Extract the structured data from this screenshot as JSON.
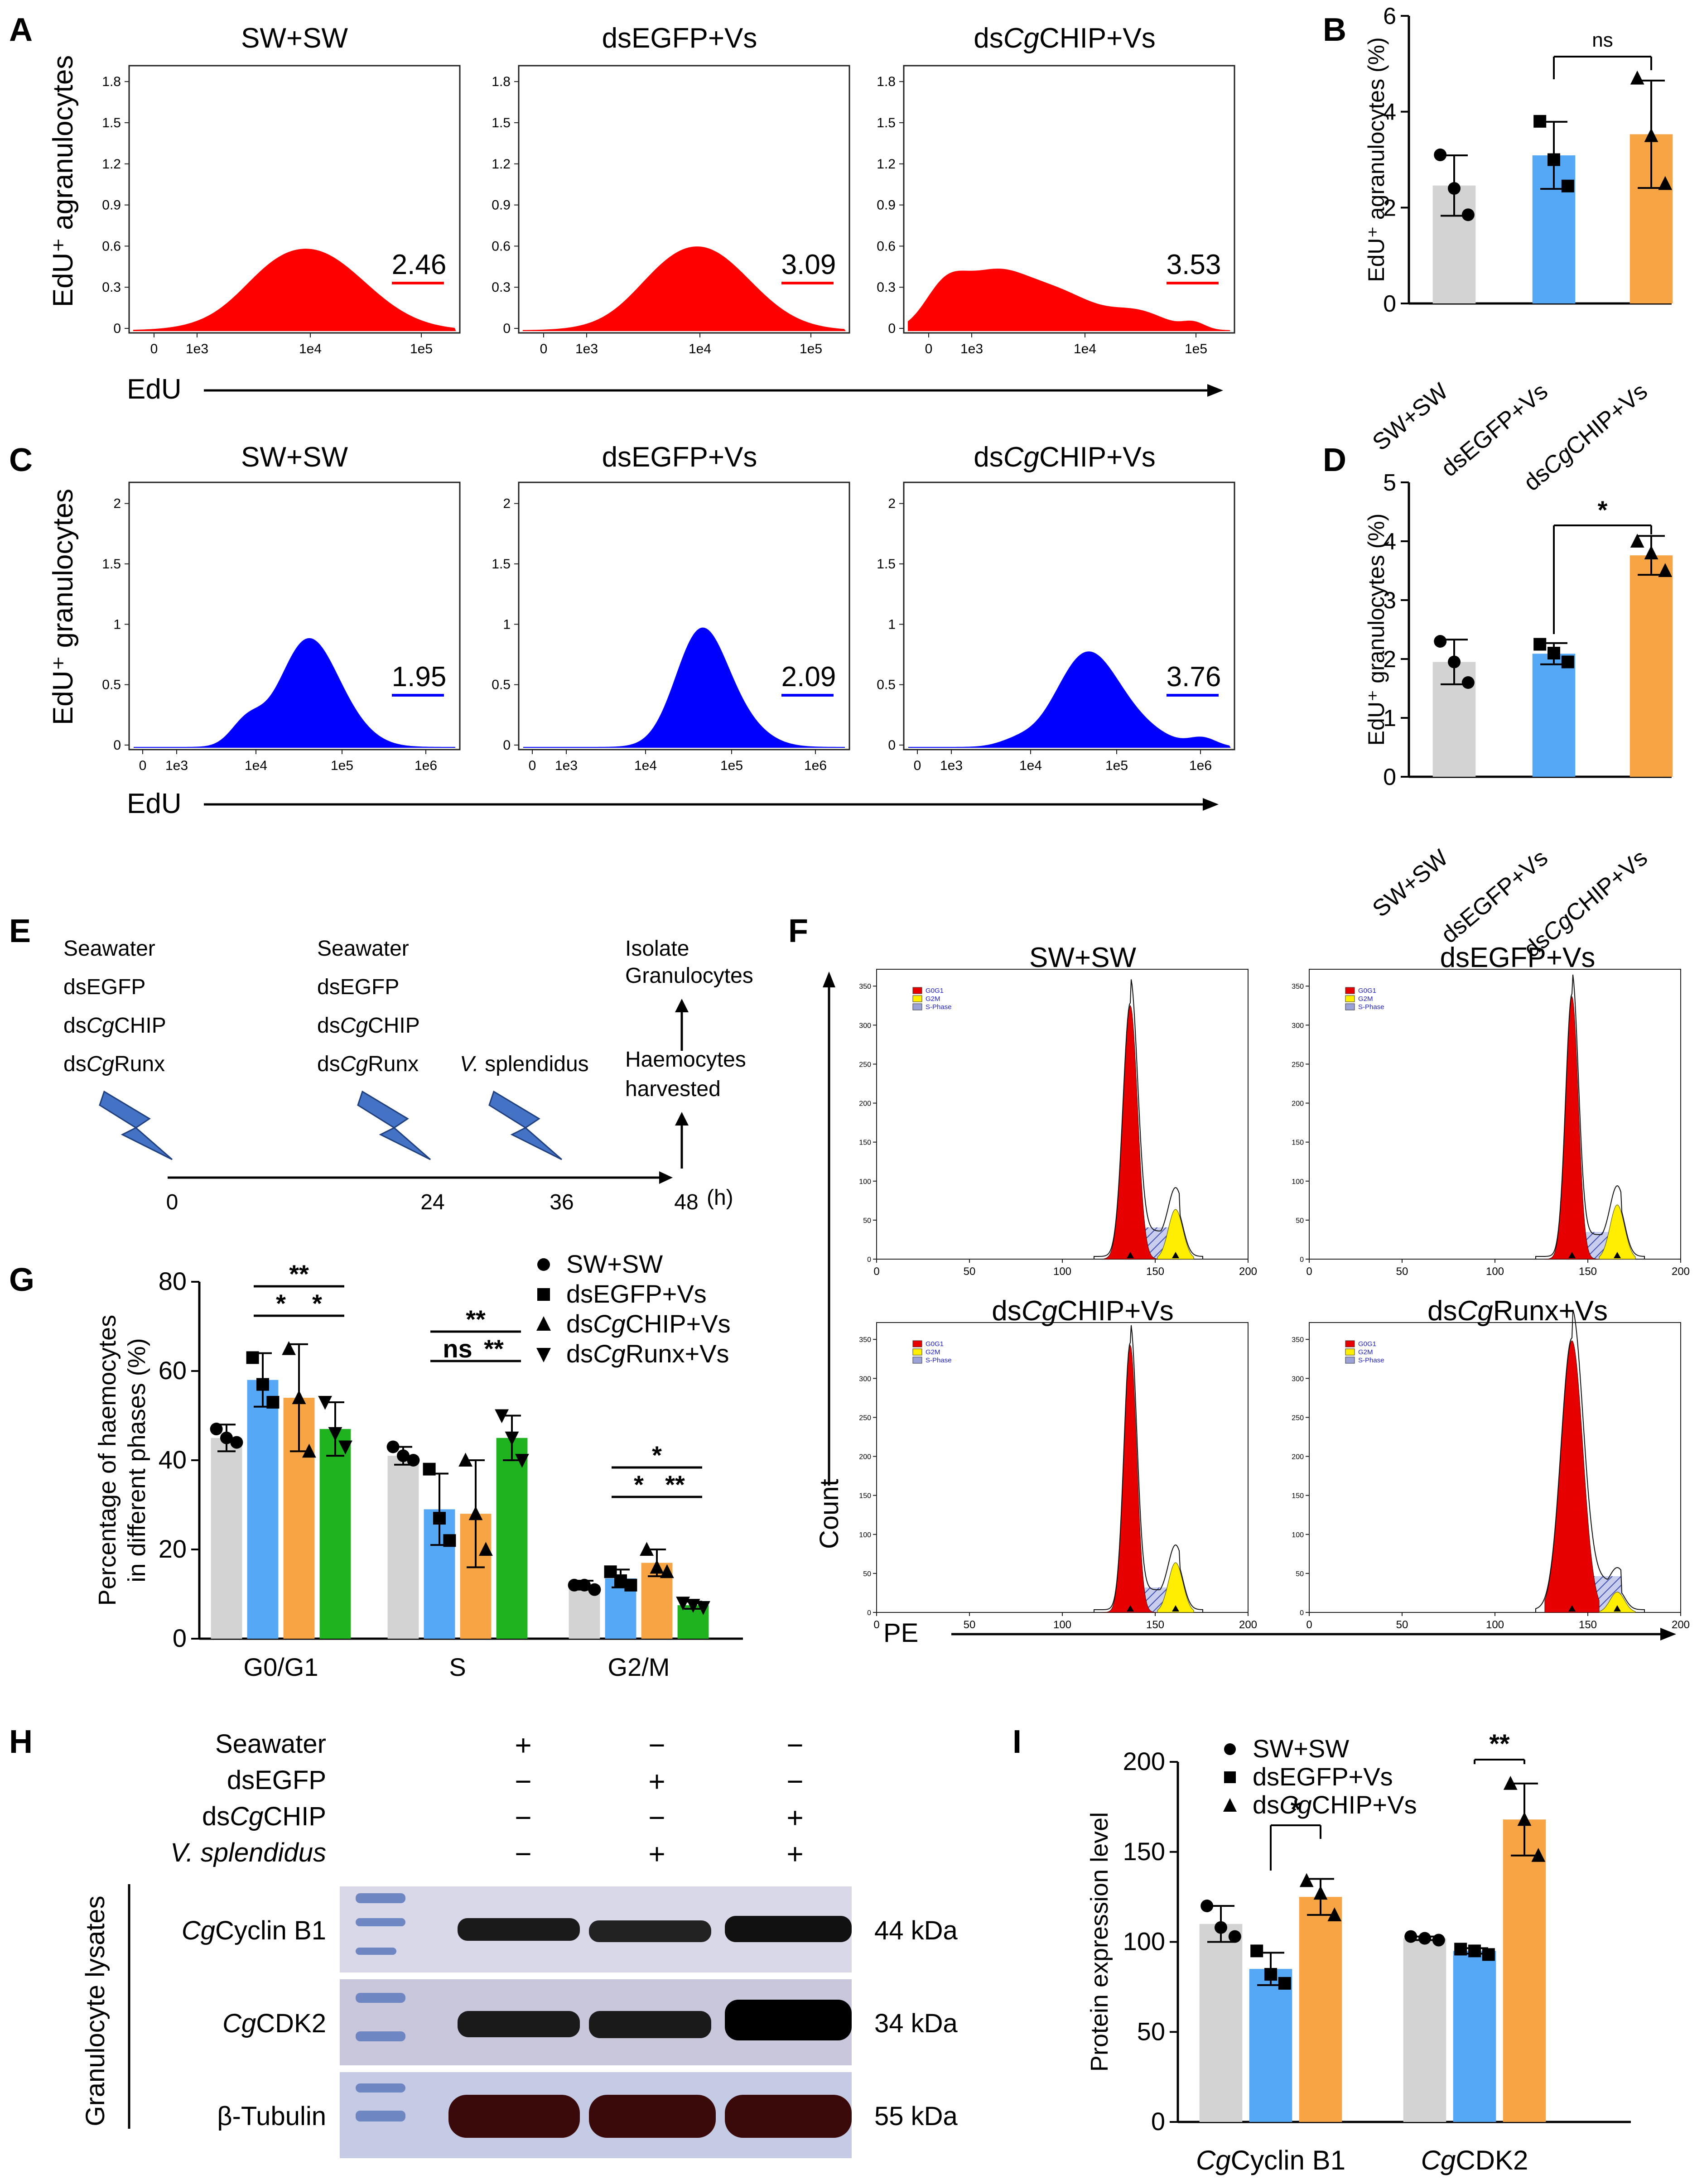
{
  "colors": {
    "sw": "#d3d3d3",
    "egfp": "#55a8f6",
    "chip": "#f7a445",
    "runx": "#1fb31f",
    "edu_agran": "#ff0000",
    "edu_gran": "#0000ff",
    "g0g1": "#e60000",
    "g2m": "#ffee00",
    "sphase": "#9aa2d8"
  },
  "panel_letters": {
    "a": "A",
    "b": "B",
    "c": "C",
    "d": "D",
    "e": "E",
    "f": "F",
    "g": "G",
    "h": "H",
    "i": "I"
  },
  "groups": {
    "sw": "SW+SW",
    "egfp": "dsEGFP+Vs",
    "chip_pre": "ds",
    "chip_it": "Cg",
    "chip_post": "CHIP+Vs",
    "runx_pre": "ds",
    "runx_it": "Cg",
    "runx_post": "Runx+Vs"
  },
  "panel_a": {
    "ylabel": "EdU⁺ agranulocytes",
    "xlabel": "EdU",
    "y_ticks": [
      "0",
      "0.3",
      "0.6",
      "0.9",
      "1.2",
      "1.5",
      "1.8"
    ],
    "x_ticks": [
      "0",
      "1e3",
      "1e4",
      "1e5"
    ],
    "values": [
      "2.46",
      "3.09",
      "3.53"
    ]
  },
  "panel_c": {
    "ylabel": "EdU⁺ granulocytes",
    "xlabel": "EdU",
    "y_ticks": [
      "0",
      "0.5",
      "1",
      "1.5",
      "2"
    ],
    "x_ticks": [
      "0",
      "1e3",
      "1e4",
      "1e5",
      "1e6"
    ],
    "values": [
      "1.95",
      "2.09",
      "3.76"
    ]
  },
  "panel_e": {
    "col1": [
      "Seawater",
      "dsEGFP",
      "dsCgCHIP",
      "dsCgRunx"
    ],
    "col2": [
      "Seawater",
      "dsEGFP",
      "dsCgCHIP",
      "dsCgRunx"
    ],
    "vs": "V. splendidus",
    "isolate": [
      "Isolate",
      "Granulocytes"
    ],
    "harvest": [
      "Haemocytes",
      "harvested"
    ],
    "times": [
      "0",
      "24",
      "36",
      "48"
    ],
    "unit": "(h)"
  },
  "panel_f": {
    "titles": [
      "SW+SW",
      "dsEGFP+Vs",
      "dsCgCHIP+Vs",
      "dsCgRunx+Vs"
    ],
    "legend": [
      "G0G1",
      "G2M",
      "S-Phase"
    ],
    "x_ticks": [
      "0",
      "50",
      "100",
      "150",
      "200"
    ],
    "ylabel": "Count",
    "xlabel": "PE"
  },
  "panel_i_labels": {
    "x1_it": "Cg",
    "x1": "Cyclin B1",
    "x2_it": "Cg",
    "x2": "CDK2"
  },
  "panel_h": {
    "rows": [
      "Seawater",
      "dsEGFP",
      "dsCgCHIP",
      "V. splendidus"
    ],
    "signs": [
      [
        "+",
        "−",
        "−"
      ],
      [
        "−",
        "+",
        "−"
      ],
      [
        "−",
        "−",
        "+"
      ],
      [
        "−",
        "+",
        "+"
      ]
    ],
    "side": "Granulocyte lysates",
    "bands": [
      {
        "name": "CgCyclin B1",
        "kda": "44 kDa"
      },
      {
        "name": "CgCDK2",
        "kda": "34 kDa"
      },
      {
        "name": "β-Tubulin",
        "kda": "55 kDa"
      }
    ]
  },
  "chart_data": [
    {
      "id": "B",
      "type": "bar",
      "categories": [
        "SW+SW",
        "dsEGFP+Vs",
        "dsCgCHIP+Vs"
      ],
      "values": [
        2.46,
        3.09,
        3.53
      ],
      "errors": [
        0.63,
        0.7,
        1.12
      ],
      "points": [
        [
          3.1,
          2.4,
          1.85
        ],
        [
          3.8,
          3.0,
          2.45
        ],
        [
          4.7,
          3.5,
          2.5
        ]
      ],
      "ylabel": "EdU⁺ agranulocytes (%)",
      "ylim": [
        0,
        6
      ],
      "yticks": [
        0,
        2,
        4,
        6
      ],
      "annotation": {
        "text": "ns",
        "between": [
          1,
          2
        ]
      }
    },
    {
      "id": "D",
      "type": "bar",
      "categories": [
        "SW+SW",
        "dsEGFP+Vs",
        "dsCgCHIP+Vs"
      ],
      "values": [
        1.95,
        2.09,
        3.76
      ],
      "errors": [
        0.38,
        0.18,
        0.33
      ],
      "points": [
        [
          2.3,
          1.95,
          1.6
        ],
        [
          2.25,
          2.1,
          1.95
        ],
        [
          4.0,
          3.8,
          3.5
        ]
      ],
      "ylabel": "EdU⁺ granulocytes (%)",
      "ylim": [
        0,
        5
      ],
      "yticks": [
        0,
        1,
        2,
        3,
        4,
        5
      ],
      "annotation": {
        "text": "*",
        "between": [
          1,
          2
        ]
      }
    },
    {
      "id": "G",
      "type": "bar",
      "categories": [
        "G0/G1",
        "S",
        "G2/M"
      ],
      "series": [
        {
          "name": "SW+SW",
          "values": [
            45,
            41,
            12
          ],
          "errors": [
            3,
            2,
            1
          ],
          "points": [
            [
              47,
              45,
              44
            ],
            [
              43,
              41,
              40
            ],
            [
              12,
              12,
              11
            ]
          ]
        },
        {
          "name": "dsEGFP+Vs",
          "values": [
            58,
            29,
            13.5
          ],
          "errors": [
            6,
            8,
            2
          ],
          "points": [
            [
              63,
              57,
              53
            ],
            [
              38,
              27,
              22
            ],
            [
              15,
              13,
              12
            ]
          ]
        },
        {
          "name": "dsCgCHIP+Vs",
          "values": [
            54,
            28,
            17
          ],
          "errors": [
            12,
            12,
            3
          ],
          "points": [
            [
              65,
              54,
              42
            ],
            [
              40,
              28,
              20
            ],
            [
              20,
              16,
              15
            ]
          ]
        },
        {
          "name": "dsCgRunx+Vs",
          "values": [
            47,
            45,
            7.5
          ],
          "errors": [
            6,
            5,
            0.8
          ],
          "points": [
            [
              53,
              46,
              43
            ],
            [
              50,
              45,
              40
            ],
            [
              8,
              7.5,
              7
            ]
          ]
        }
      ],
      "ylabel": "Percentage of haemocytes in different phases (%)",
      "ylim": [
        0,
        80
      ],
      "yticks": [
        0,
        20,
        40,
        60,
        80
      ],
      "annotations": [
        {
          "group": "G0/G1",
          "text": "**",
          "between": [
            1,
            3
          ],
          "level": 1
        },
        {
          "group": "G0/G1",
          "text": "*",
          "between": [
            1,
            2
          ],
          "level": 0
        },
        {
          "group": "G0/G1",
          "text": "*",
          "between": [
            2,
            3
          ],
          "level": 0
        },
        {
          "group": "S",
          "text": "**",
          "between": [
            1,
            3
          ],
          "level": 1
        },
        {
          "group": "S",
          "text": "ns",
          "between": [
            1,
            2
          ],
          "level": 0
        },
        {
          "group": "S",
          "text": "**",
          "between": [
            2,
            3
          ],
          "level": 0
        },
        {
          "group": "G2/M",
          "text": "*",
          "between": [
            1,
            3
          ],
          "level": 1
        },
        {
          "group": "G2/M",
          "text": "*",
          "between": [
            1,
            2
          ],
          "level": 0
        },
        {
          "group": "G2/M",
          "text": "**",
          "between": [
            2,
            3
          ],
          "level": 0
        }
      ]
    },
    {
      "id": "I",
      "type": "bar",
      "categories": [
        "CgCyclin B1",
        "CgCDK2"
      ],
      "series": [
        {
          "name": "SW+SW",
          "values": [
            110,
            102
          ],
          "errors": [
            10,
            1
          ],
          "points": [
            [
              120,
              108,
              103
            ],
            [
              103,
              102,
              101
            ]
          ]
        },
        {
          "name": "dsEGFP+Vs",
          "values": [
            85,
            95
          ],
          "errors": [
            9,
            1.5
          ],
          "points": [
            [
              95,
              82,
              77
            ],
            [
              96,
              95,
              93
            ]
          ]
        },
        {
          "name": "dsCgCHIP+Vs",
          "values": [
            125,
            168
          ],
          "errors": [
            10,
            20
          ],
          "points": [
            [
              134,
              127,
              115
            ],
            [
              188,
              168,
              148
            ]
          ]
        }
      ],
      "ylabel": "Protein expression level",
      "ylim": [
        0,
        200
      ],
      "yticks": [
        0,
        50,
        100,
        150,
        200
      ],
      "annotations": [
        {
          "group": "CgCyclin B1",
          "text": "*",
          "between": [
            1,
            2
          ]
        },
        {
          "group": "CgCDK2",
          "text": "**",
          "between": [
            1,
            2
          ]
        }
      ]
    }
  ]
}
